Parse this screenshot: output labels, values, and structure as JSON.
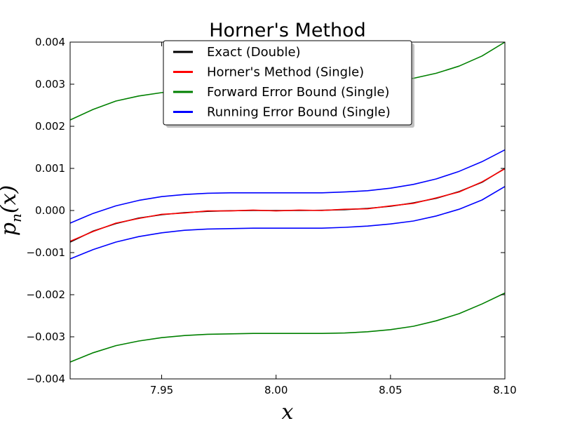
{
  "chart_data": {
    "type": "line",
    "title": "Horner's Method",
    "xlabel": "x",
    "ylabel": "p_n(x)",
    "xlim": [
      7.91,
      8.1
    ],
    "ylim": [
      -0.004,
      0.004
    ],
    "xticks": [
      7.95,
      8.0,
      8.05,
      8.1
    ],
    "xtick_labels": [
      "7.95",
      "8.00",
      "8.05",
      "8.10"
    ],
    "yticks": [
      -0.004,
      -0.003,
      -0.002,
      -0.001,
      0.0,
      0.001,
      0.002,
      0.003,
      0.004
    ],
    "ytick_labels": [
      "−0.004",
      "−0.003",
      "−0.002",
      "−0.001",
      "0.000",
      "0.001",
      "0.002",
      "0.003",
      "0.004"
    ],
    "legend_position": "top-center",
    "grid": false,
    "series": [
      {
        "name": "Exact (Double)",
        "color": "#000000",
        "x": [
          7.91,
          7.92,
          7.93,
          7.94,
          7.95,
          7.96,
          7.97,
          7.98,
          7.99,
          8.0,
          8.01,
          8.02,
          8.03,
          8.04,
          8.05,
          8.06,
          8.07,
          8.08,
          8.09,
          8.1
        ],
        "y": [
          -0.00075,
          -0.00049,
          -0.00031,
          -0.00018,
          -0.0001,
          -5e-05,
          -2e-05,
          -5e-06,
          0.0,
          0.0,
          0.0,
          5e-06,
          2e-05,
          5e-05,
          0.0001,
          0.00018,
          0.00029,
          0.00045,
          0.00067,
          0.001
        ]
      },
      {
        "name": "Horner's Method (Single)",
        "color": "#ff0000",
        "x": [
          7.91,
          7.92,
          7.93,
          7.94,
          7.95,
          7.96,
          7.97,
          7.98,
          7.99,
          8.0,
          8.01,
          8.02,
          8.03,
          8.04,
          8.05,
          8.06,
          8.07,
          8.08,
          8.09,
          8.1
        ],
        "y": [
          -0.00073,
          -0.0005,
          -0.0003,
          -0.00019,
          -9e-05,
          -6e-05,
          -1e-05,
          -1e-05,
          1e-05,
          -1e-05,
          1e-05,
          0.0,
          3e-05,
          4e-05,
          0.00011,
          0.00017,
          0.0003,
          0.00044,
          0.00068,
          0.00099
        ]
      },
      {
        "name": "Forward Error Bound (Single)",
        "color": "#008000",
        "x": [
          7.91,
          7.92,
          7.93,
          7.94,
          7.95,
          7.96,
          7.97,
          7.98,
          7.99,
          8.0,
          8.01,
          8.02,
          8.03,
          8.04,
          8.05,
          8.06,
          8.07,
          8.08,
          8.09,
          8.1
        ],
        "y": [
          0.00215,
          0.0024,
          0.0026,
          0.00272,
          0.0028,
          0.00285,
          0.00289,
          0.00291,
          0.00292,
          0.00292,
          0.00292,
          0.00293,
          0.00295,
          0.00299,
          0.00305,
          0.00314,
          0.00326,
          0.00343,
          0.00367,
          0.004
        ]
      },
      {
        "name": "Forward Error Bound (Single)",
        "color": "#008000",
        "x": [
          7.91,
          7.92,
          7.93,
          7.94,
          7.95,
          7.96,
          7.97,
          7.98,
          7.99,
          8.0,
          8.01,
          8.02,
          8.03,
          8.04,
          8.05,
          8.06,
          8.07,
          8.08,
          8.09,
          8.1
        ],
        "y": [
          -0.0036,
          -0.00338,
          -0.00321,
          -0.0031,
          -0.00302,
          -0.00297,
          -0.00294,
          -0.00293,
          -0.00292,
          -0.00292,
          -0.00292,
          -0.00292,
          -0.00291,
          -0.00288,
          -0.00283,
          -0.00275,
          -0.00262,
          -0.00245,
          -0.00222,
          -0.00196
        ]
      },
      {
        "name": "Running Error Bound (Single)",
        "color": "#0000ff",
        "x": [
          7.91,
          7.92,
          7.93,
          7.94,
          7.95,
          7.96,
          7.97,
          7.98,
          7.99,
          8.0,
          8.01,
          8.02,
          8.03,
          8.04,
          8.05,
          8.06,
          8.07,
          8.08,
          8.09,
          8.1
        ],
        "y": [
          -0.0003,
          -7e-05,
          0.00011,
          0.00024,
          0.00033,
          0.00038,
          0.00041,
          0.00042,
          0.00042,
          0.00042,
          0.00042,
          0.00042,
          0.00044,
          0.00047,
          0.00053,
          0.00062,
          0.00075,
          0.00093,
          0.00116,
          0.00144
        ]
      },
      {
        "name": "Running Error Bound (Single)",
        "color": "#0000ff",
        "x": [
          7.91,
          7.92,
          7.93,
          7.94,
          7.95,
          7.96,
          7.97,
          7.98,
          7.99,
          8.0,
          8.01,
          8.02,
          8.03,
          8.04,
          8.05,
          8.06,
          8.07,
          8.08,
          8.09,
          8.1
        ],
        "y": [
          -0.00115,
          -0.00093,
          -0.00075,
          -0.00062,
          -0.00053,
          -0.00047,
          -0.00044,
          -0.00043,
          -0.00042,
          -0.00042,
          -0.00042,
          -0.00042,
          -0.0004,
          -0.00037,
          -0.00032,
          -0.00025,
          -0.00013,
          3e-05,
          0.00025,
          0.00057
        ]
      }
    ],
    "legend": [
      {
        "label": "Exact (Double)",
        "color": "#000000"
      },
      {
        "label": "Horner's Method (Single)",
        "color": "#ff0000"
      },
      {
        "label": "Forward Error Bound (Single)",
        "color": "#008000"
      },
      {
        "label": "Running Error Bound (Single)",
        "color": "#0000ff"
      }
    ]
  }
}
